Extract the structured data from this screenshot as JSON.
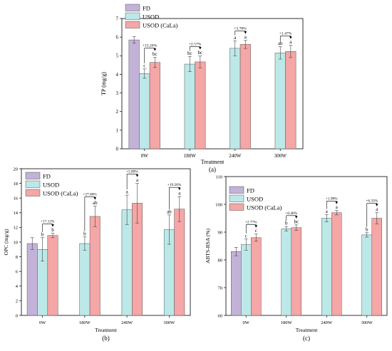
{
  "colors": {
    "FD": "#c3b2d8",
    "USOD": "#bde8e8",
    "USOD (CaLa)": "#f5a6a6"
  },
  "chart_data": [
    {
      "id": "a",
      "type": "bar",
      "panel_label": "(a)",
      "xlabel": "Treatment",
      "ylabel": "TP (mg/g)",
      "ylim": [
        0,
        7
      ],
      "yticks": [
        0,
        1,
        2,
        3,
        4,
        5,
        6,
        7
      ],
      "categories": [
        "0W",
        "180W",
        "240W",
        "300W"
      ],
      "legend": {
        "placement": "top-left",
        "entries": [
          "FD",
          "USOD",
          "USOD (CaLa)"
        ]
      },
      "series": [
        {
          "name": "FD",
          "values": [
            5.85,
            null,
            null,
            null
          ],
          "errors": [
            0.18,
            null,
            null,
            null
          ],
          "letters": [
            "",
            "",
            "",
            ""
          ]
        },
        {
          "name": "USOD",
          "values": [
            4.04,
            4.55,
            5.4,
            5.15
          ],
          "errors": [
            0.25,
            0.4,
            0.4,
            0.33
          ],
          "letters": [
            "c",
            "bc",
            "a",
            "ab"
          ]
        },
        {
          "name": "USOD (CaLa)",
          "values": [
            4.64,
            4.67,
            5.61,
            5.23
          ],
          "errors": [
            0.27,
            0.32,
            0.22,
            0.33
          ],
          "letters": [
            "bc",
            "bc",
            "a",
            "a"
          ]
        }
      ],
      "annotations": [
        "+13.20%",
        "+2.57%",
        "+3.78%",
        "+1.47%"
      ]
    },
    {
      "id": "b",
      "type": "bar",
      "panel_label": "(b)",
      "xlabel": "Treatment",
      "ylabel": "OPC (mg/g)",
      "ylim": [
        0,
        20
      ],
      "yticks": [
        0,
        2,
        4,
        6,
        8,
        10,
        12,
        14,
        16,
        18,
        20
      ],
      "categories": [
        "0W",
        "180W",
        "240W",
        "300W"
      ],
      "legend": {
        "placement": "top-left",
        "entries": [
          "FD",
          "USOD",
          "USOD (CaLa)"
        ]
      },
      "series": [
        {
          "name": "FD",
          "values": [
            9.8,
            null,
            null,
            null
          ],
          "errors": [
            0.8,
            null,
            null,
            null
          ],
          "letters": [
            "",
            "",
            "",
            ""
          ]
        },
        {
          "name": "USOD",
          "values": [
            9.0,
            9.8,
            14.4,
            11.7
          ],
          "errors": [
            1.6,
            0.9,
            2.0,
            2.0
          ],
          "letters": [
            "b",
            "b",
            "a",
            "ab"
          ]
        },
        {
          "name": "USOD (CaLa)",
          "values": [
            10.9,
            13.5,
            15.3,
            14.5
          ],
          "errors": [
            0.3,
            1.4,
            2.7,
            1.7
          ],
          "letters": [
            "b",
            "ab",
            "a",
            "a"
          ]
        }
      ],
      "annotations": [
        "+17.12%",
        "+27.00%",
        "+5.89%",
        "+19.26%"
      ]
    },
    {
      "id": "c",
      "type": "bar",
      "panel_label": "(c)",
      "xlabel": "Treatment",
      "ylabel": "ABTS-RSA (%)",
      "ylim": [
        60,
        110
      ],
      "yticks": [
        60,
        70,
        80,
        90,
        100,
        110
      ],
      "categories": [
        "0W",
        "180W",
        "240W",
        "300W"
      ],
      "legend": {
        "placement": "top-left",
        "entries": [
          "FD",
          "USOD",
          "USOD (CaLa)"
        ]
      },
      "series": [
        {
          "name": "FD",
          "values": [
            83.0,
            null,
            null,
            null
          ],
          "errors": [
            1.5,
            null,
            null,
            null
          ],
          "letters": [
            "",
            "",
            "",
            ""
          ]
        },
        {
          "name": "USOD",
          "values": [
            85.5,
            91.2,
            95.0,
            89.0
          ],
          "errors": [
            2.0,
            0.8,
            1.3,
            0.8
          ],
          "letters": [
            "c",
            "b",
            "a",
            "b"
          ]
        },
        {
          "name": "USOD (CaLa)",
          "values": [
            88.0,
            91.6,
            97.0,
            95.0
          ],
          "errors": [
            1.3,
            1.0,
            0.8,
            2.0
          ],
          "letters": [
            "c",
            "bc",
            "a",
            "a"
          ]
        }
      ],
      "annotations": [
        "+2.77%",
        "+0.40%",
        "+1.98%",
        "+6.33%"
      ]
    }
  ]
}
